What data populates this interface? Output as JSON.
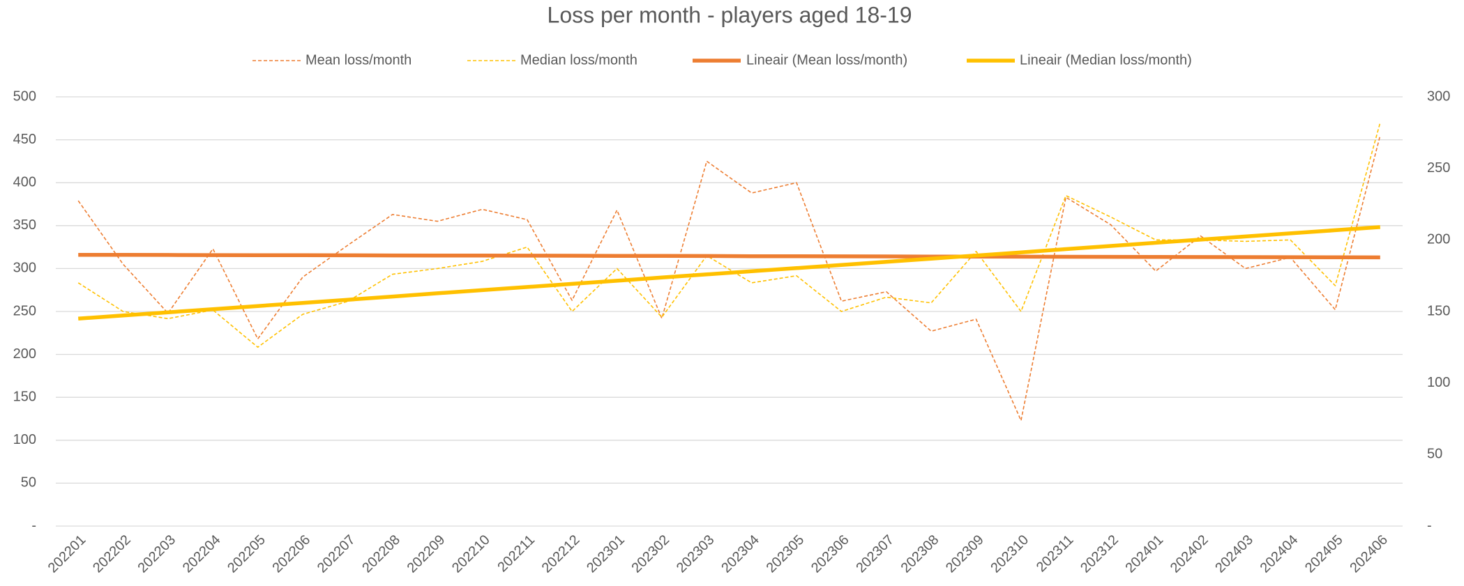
{
  "chart_data": {
    "type": "line",
    "title": "Loss per month - players aged 18-19",
    "categories": [
      "202201",
      "202202",
      "202203",
      "202204",
      "202205",
      "202206",
      "202207",
      "202208",
      "202209",
      "202210",
      "202211",
      "202212",
      "202301",
      "202302",
      "202303",
      "202304",
      "202305",
      "202306",
      "202307",
      "202308",
      "202309",
      "202310",
      "202311",
      "202312",
      "202401",
      "202402",
      "202403",
      "202404",
      "202405",
      "202406"
    ],
    "series": [
      {
        "name": "Mean loss/month",
        "color": "#ED7D31",
        "style": "dashed",
        "axis": "y",
        "values": [
          379,
          305,
          248,
          323,
          218,
          290,
          327,
          363,
          355,
          369,
          357,
          263,
          368,
          242,
          425,
          388,
          400,
          262,
          273,
          227,
          241,
          123,
          383,
          351,
          297,
          338,
          300,
          313,
          252,
          455
        ]
      },
      {
        "name": "Median loss/month",
        "color": "#FFC000",
        "style": "dashed",
        "axis": "y2",
        "values": [
          170,
          150,
          145,
          151,
          125,
          148,
          157,
          176,
          180,
          185,
          195,
          150,
          180,
          146,
          189,
          170,
          175,
          150,
          160,
          156,
          192,
          150,
          231,
          216,
          200,
          200,
          199,
          200,
          168,
          282
        ]
      },
      {
        "name": "Lineair (Mean loss/month)",
        "color": "#ED7D31",
        "style": "solid",
        "axis": "y",
        "values": [
          316,
          315.9,
          315.8,
          315.7,
          315.6,
          315.5,
          315.4,
          315.3,
          315.2,
          315.1,
          315,
          314.9,
          314.8,
          314.7,
          314.6,
          314.4,
          314.3,
          314.2,
          314.1,
          314,
          313.9,
          313.8,
          313.7,
          313.6,
          313.5,
          313.4,
          313.3,
          313.2,
          313.1,
          313
        ]
      },
      {
        "name": "Lineair (Median loss/month)",
        "color": "#FFC000",
        "style": "solid",
        "axis": "y2",
        "values": [
          145,
          147.2,
          149.4,
          151.6,
          153.8,
          156,
          158.2,
          160.4,
          162.7,
          164.9,
          167.1,
          169.3,
          171.5,
          173.7,
          175.9,
          178.1,
          180.3,
          182.5,
          184.7,
          186.9,
          189.1,
          191.3,
          193.6,
          195.8,
          198,
          200.2,
          202.4,
          204.6,
          206.8,
          209
        ]
      }
    ],
    "ylim": [
      0,
      500
    ],
    "yticks": [
      {
        "value": 0,
        "label": "-"
      },
      50,
      100,
      150,
      200,
      250,
      300,
      350,
      400,
      450,
      500
    ],
    "y2lim": [
      0,
      300
    ],
    "y2ticks": [
      {
        "value": 0,
        "label": "-"
      },
      50,
      100,
      150,
      200,
      250,
      300
    ],
    "grid": true,
    "legend": "top"
  }
}
